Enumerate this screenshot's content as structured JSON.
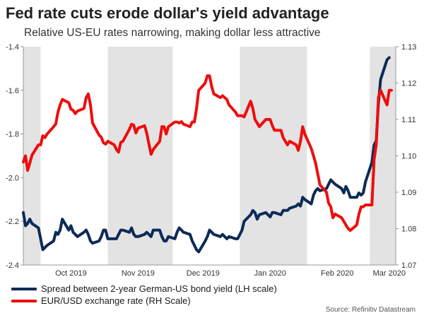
{
  "title": "Fed rate cuts erode dollar's yield advantage",
  "subtitle": "Relative US-EU rates narrowing, making dollar less attractive",
  "source": "Source: Refinitiv Datastream",
  "colors": {
    "spread": "#0d2a57",
    "eurusd": "#ee0d0d",
    "shade": "#e3e3e3",
    "axis": "#999999"
  },
  "chart_data": {
    "type": "line",
    "x_unit": "date",
    "x_range": [
      "2019-09-23",
      "2020-03-13"
    ],
    "x_ticks": [
      {
        "label": "Oct 2019",
        "date": "2019-10-15"
      },
      {
        "label": "Nov 2019",
        "date": "2019-11-15"
      },
      {
        "label": "Dec 2019",
        "date": "2019-12-15"
      },
      {
        "label": "Jan 2020",
        "date": "2020-01-15"
      },
      {
        "label": "Feb 2020",
        "date": "2020-02-15"
      },
      {
        "label": "Mar 2020",
        "date": "2020-03-10"
      }
    ],
    "shaded_periods": [
      [
        "2019-09-23",
        "2019-10-01"
      ],
      [
        "2019-11-01",
        "2019-12-01"
      ],
      [
        "2020-01-01",
        "2020-02-01"
      ],
      [
        "2020-03-01",
        "2020-03-13"
      ]
    ],
    "left_axis": {
      "ylim": [
        -2.4,
        -1.4
      ],
      "ticks": [
        "-1.4",
        "-1.6",
        "-1.8",
        "-2.0",
        "-2.2",
        "-2.4"
      ]
    },
    "right_axis": {
      "ylim": [
        1.07,
        1.13
      ],
      "ticks": [
        "1.13",
        "1.12",
        "1.11",
        "1.10",
        "1.09",
        "1.08",
        "1.07"
      ]
    },
    "series": [
      {
        "name": "Spread between 2-year German-US bond yield (LH scale)",
        "axis": "left",
        "points": [
          [
            "2019-09-23",
            -2.16
          ],
          [
            "2019-09-24",
            -2.22
          ],
          [
            "2019-09-25",
            -2.21
          ],
          [
            "2019-09-26",
            -2.19
          ],
          [
            "2019-09-27",
            -2.21
          ],
          [
            "2019-09-30",
            -2.23
          ],
          [
            "2019-10-01",
            -2.28
          ],
          [
            "2019-10-02",
            -2.33
          ],
          [
            "2019-10-03",
            -2.32
          ],
          [
            "2019-10-04",
            -2.31
          ],
          [
            "2019-10-07",
            -2.29
          ],
          [
            "2019-10-08",
            -2.25
          ],
          [
            "2019-10-09",
            -2.26
          ],
          [
            "2019-10-10",
            -2.24
          ],
          [
            "2019-10-11",
            -2.19
          ],
          [
            "2019-10-14",
            -2.24
          ],
          [
            "2019-10-15",
            -2.22
          ],
          [
            "2019-10-16",
            -2.25
          ],
          [
            "2019-10-17",
            -2.26
          ],
          [
            "2019-10-18",
            -2.27
          ],
          [
            "2019-10-21",
            -2.25
          ],
          [
            "2019-10-22",
            -2.24
          ],
          [
            "2019-10-23",
            -2.26
          ],
          [
            "2019-10-24",
            -2.29
          ],
          [
            "2019-10-25",
            -2.3
          ],
          [
            "2019-10-28",
            -2.29
          ],
          [
            "2019-10-29",
            -2.27
          ],
          [
            "2019-10-30",
            -2.24
          ],
          [
            "2019-10-31",
            -2.24
          ],
          [
            "2019-11-01",
            -2.28
          ],
          [
            "2019-11-04",
            -2.28
          ],
          [
            "2019-11-05",
            -2.28
          ],
          [
            "2019-11-06",
            -2.26
          ],
          [
            "2019-11-07",
            -2.24
          ],
          [
            "2019-11-08",
            -2.24
          ],
          [
            "2019-11-11",
            -2.25
          ],
          [
            "2019-11-12",
            -2.23
          ],
          [
            "2019-11-13",
            -2.26
          ],
          [
            "2019-11-14",
            -2.27
          ],
          [
            "2019-11-15",
            -2.27
          ],
          [
            "2019-11-18",
            -2.26
          ],
          [
            "2019-11-19",
            -2.25
          ],
          [
            "2019-11-20",
            -2.26
          ],
          [
            "2019-11-21",
            -2.27
          ],
          [
            "2019-11-22",
            -2.24
          ],
          [
            "2019-11-25",
            -2.24
          ],
          [
            "2019-11-26",
            -2.27
          ],
          [
            "2019-11-27",
            -2.29
          ],
          [
            "2019-11-28",
            -2.29
          ],
          [
            "2019-11-29",
            -2.27
          ],
          [
            "2019-12-02",
            -2.28
          ],
          [
            "2019-12-03",
            -2.25
          ],
          [
            "2019-12-04",
            -2.23
          ],
          [
            "2019-12-05",
            -2.24
          ],
          [
            "2019-12-06",
            -2.25
          ],
          [
            "2019-12-09",
            -2.26
          ],
          [
            "2019-12-10",
            -2.29
          ],
          [
            "2019-12-11",
            -2.31
          ],
          [
            "2019-12-12",
            -2.33
          ],
          [
            "2019-12-13",
            -2.34
          ],
          [
            "2019-12-16",
            -2.29
          ],
          [
            "2019-12-17",
            -2.27
          ],
          [
            "2019-12-18",
            -2.24
          ],
          [
            "2019-12-19",
            -2.25
          ],
          [
            "2019-12-20",
            -2.26
          ],
          [
            "2019-12-23",
            -2.27
          ],
          [
            "2019-12-24",
            -2.26
          ],
          [
            "2019-12-26",
            -2.28
          ],
          [
            "2019-12-27",
            -2.27
          ],
          [
            "2019-12-30",
            -2.28
          ],
          [
            "2019-12-31",
            -2.28
          ],
          [
            "2020-01-02",
            -2.24
          ],
          [
            "2020-01-03",
            -2.2
          ],
          [
            "2020-01-06",
            -2.17
          ],
          [
            "2020-01-07",
            -2.15
          ],
          [
            "2020-01-08",
            -2.16
          ],
          [
            "2020-01-09",
            -2.19
          ],
          [
            "2020-01-10",
            -2.17
          ],
          [
            "2020-01-13",
            -2.16
          ],
          [
            "2020-01-14",
            -2.17
          ],
          [
            "2020-01-15",
            -2.18
          ],
          [
            "2020-01-16",
            -2.16
          ],
          [
            "2020-01-17",
            -2.16
          ],
          [
            "2020-01-20",
            -2.17
          ],
          [
            "2020-01-21",
            -2.15
          ],
          [
            "2020-01-22",
            -2.15
          ],
          [
            "2020-01-23",
            -2.15
          ],
          [
            "2020-01-24",
            -2.14
          ],
          [
            "2020-01-27",
            -2.13
          ],
          [
            "2020-01-28",
            -2.12
          ],
          [
            "2020-01-29",
            -2.13
          ],
          [
            "2020-01-30",
            -2.09
          ],
          [
            "2020-01-31",
            -2.1
          ],
          [
            "2020-02-03",
            -2.12
          ],
          [
            "2020-02-04",
            -2.08
          ],
          [
            "2020-02-05",
            -2.06
          ],
          [
            "2020-02-06",
            -2.05
          ],
          [
            "2020-02-07",
            -2.06
          ],
          [
            "2020-02-10",
            -2.05
          ],
          [
            "2020-02-11",
            -2.03
          ],
          [
            "2020-02-12",
            -2.01
          ],
          [
            "2020-02-13",
            -2.02
          ],
          [
            "2020-02-14",
            -2.03
          ],
          [
            "2020-02-17",
            -2.05
          ],
          [
            "2020-02-18",
            -2.07
          ],
          [
            "2020-02-19",
            -2.04
          ],
          [
            "2020-02-20",
            -2.06
          ],
          [
            "2020-02-21",
            -2.09
          ],
          [
            "2020-02-24",
            -2.09
          ],
          [
            "2020-02-25",
            -2.07
          ],
          [
            "2020-02-26",
            -2.08
          ],
          [
            "2020-02-27",
            -2.07
          ],
          [
            "2020-02-28",
            -2.02
          ],
          [
            "2020-03-02",
            -1.93
          ],
          [
            "2020-03-03",
            -1.85
          ],
          [
            "2020-03-04",
            -1.83
          ],
          [
            "2020-03-05",
            -1.66
          ],
          [
            "2020-03-06",
            -1.55
          ],
          [
            "2020-03-09",
            -1.46
          ],
          [
            "2020-03-10",
            -1.45
          ]
        ]
      },
      {
        "name": "EUR/USD exchange rate (RH Scale)",
        "axis": "right",
        "points": [
          [
            "2019-09-23",
            1.0983
          ],
          [
            "2019-09-24",
            1.1
          ],
          [
            "2019-09-25",
            1.096
          ],
          [
            "2019-09-26",
            1.098
          ],
          [
            "2019-09-27",
            1.1002
          ],
          [
            "2019-09-30",
            1.103
          ],
          [
            "2019-10-01",
            1.103
          ],
          [
            "2019-10-02",
            1.1055
          ],
          [
            "2019-10-03",
            1.105
          ],
          [
            "2019-10-04",
            1.106
          ],
          [
            "2019-10-07",
            1.108
          ],
          [
            "2019-10-08",
            1.1088
          ],
          [
            "2019-10-09",
            1.112
          ],
          [
            "2019-10-10",
            1.114
          ],
          [
            "2019-10-11",
            1.1155
          ],
          [
            "2019-10-14",
            1.1146
          ],
          [
            "2019-10-15",
            1.1128
          ],
          [
            "2019-10-16",
            1.1125
          ],
          [
            "2019-10-17",
            1.1116
          ],
          [
            "2019-10-18",
            1.1123
          ],
          [
            "2019-10-21",
            1.113
          ],
          [
            "2019-10-22",
            1.116
          ],
          [
            "2019-10-23",
            1.117
          ],
          [
            "2019-10-24",
            1.114
          ],
          [
            "2019-10-25",
            1.109
          ],
          [
            "2019-10-28",
            1.1057
          ],
          [
            "2019-10-29",
            1.1051
          ],
          [
            "2019-10-30",
            1.1036
          ],
          [
            "2019-10-31",
            1.1032
          ],
          [
            "2019-11-01",
            1.104
          ],
          [
            "2019-11-04",
            1.103
          ],
          [
            "2019-11-05",
            1.1017
          ],
          [
            "2019-11-06",
            1.101
          ],
          [
            "2019-11-07",
            1.1037
          ],
          [
            "2019-11-08",
            1.104
          ],
          [
            "2019-11-11",
            1.1073
          ],
          [
            "2019-11-12",
            1.1087
          ],
          [
            "2019-11-13",
            1.1084
          ],
          [
            "2019-11-14",
            1.1063
          ],
          [
            "2019-11-15",
            1.1076
          ],
          [
            "2019-11-18",
            1.1083
          ],
          [
            "2019-11-19",
            1.1063
          ],
          [
            "2019-11-20",
            1.1033
          ],
          [
            "2019-11-21",
            1.1004
          ],
          [
            "2019-11-22",
            1.1017
          ],
          [
            "2019-11-25",
            1.104
          ],
          [
            "2019-11-26",
            1.108
          ],
          [
            "2019-11-27",
            1.108
          ],
          [
            "2019-11-28",
            1.106
          ],
          [
            "2019-11-29",
            1.108
          ],
          [
            "2019-12-02",
            1.1093
          ],
          [
            "2019-12-03",
            1.1093
          ],
          [
            "2019-12-04",
            1.109
          ],
          [
            "2019-12-05",
            1.1094
          ],
          [
            "2019-12-06",
            1.1087
          ],
          [
            "2019-12-09",
            1.108
          ],
          [
            "2019-12-10",
            1.1093
          ],
          [
            "2019-12-11",
            1.1093
          ],
          [
            "2019-12-12",
            1.113
          ],
          [
            "2019-12-13",
            1.118
          ],
          [
            "2019-12-16",
            1.12
          ],
          [
            "2019-12-17",
            1.122
          ],
          [
            "2019-12-18",
            1.122
          ],
          [
            "2019-12-19",
            1.119
          ],
          [
            "2019-12-20",
            1.117
          ],
          [
            "2019-12-23",
            1.116
          ],
          [
            "2019-12-24",
            1.1165
          ],
          [
            "2019-12-26",
            1.1155
          ],
          [
            "2019-12-27",
            1.114
          ],
          [
            "2019-12-30",
            1.112
          ],
          [
            "2019-12-31",
            1.111
          ],
          [
            "2020-01-02",
            1.111
          ],
          [
            "2020-01-03",
            1.1107
          ],
          [
            "2020-01-06",
            1.115
          ],
          [
            "2020-01-07",
            1.113
          ],
          [
            "2020-01-08",
            1.11
          ],
          [
            "2020-01-09",
            1.109
          ],
          [
            "2020-01-10",
            1.108
          ],
          [
            "2020-01-13",
            1.11
          ],
          [
            "2020-01-14",
            1.11
          ],
          [
            "2020-01-15",
            1.11
          ],
          [
            "2020-01-16",
            1.1083
          ],
          [
            "2020-01-17",
            1.107
          ],
          [
            "2020-01-20",
            1.107
          ],
          [
            "2020-01-21",
            1.105
          ],
          [
            "2020-01-22",
            1.104
          ],
          [
            "2020-01-23",
            1.103
          ],
          [
            "2020-01-24",
            1.104
          ],
          [
            "2020-01-27",
            1.103
          ],
          [
            "2020-01-28",
            1.1015
          ],
          [
            "2020-01-29",
            1.104
          ],
          [
            "2020-01-30",
            1.108
          ],
          [
            "2020-01-31",
            1.106
          ],
          [
            "2020-02-03",
            1.102
          ],
          [
            "2020-02-04",
            1.1
          ],
          [
            "2020-02-05",
            1.098
          ],
          [
            "2020-02-06",
            1.095
          ],
          [
            "2020-02-07",
            1.092
          ],
          [
            "2020-02-10",
            1.09
          ],
          [
            "2020-02-11",
            1.087
          ],
          [
            "2020-02-12",
            1.086
          ],
          [
            "2020-02-13",
            1.083
          ],
          [
            "2020-02-14",
            1.084
          ],
          [
            "2020-02-17",
            1.083
          ],
          [
            "2020-02-18",
            1.082
          ],
          [
            "2020-02-19",
            1.081
          ],
          [
            "2020-02-20",
            1.08
          ],
          [
            "2020-02-21",
            1.0795
          ],
          [
            "2020-02-24",
            1.081
          ],
          [
            "2020-02-25",
            1.084
          ],
          [
            "2020-02-26",
            1.086
          ],
          [
            "2020-02-27",
            1.086
          ],
          [
            "2020-02-28",
            1.0865
          ],
          [
            "2020-03-02",
            1.0865
          ],
          [
            "2020-03-03",
            1.099
          ],
          [
            "2020-03-04",
            1.103
          ],
          [
            "2020-03-05",
            1.116
          ],
          [
            "2020-03-06",
            1.118
          ],
          [
            "2020-03-09",
            1.114
          ],
          [
            "2020-03-10",
            1.118
          ],
          [
            "2020-03-11",
            1.118
          ]
        ]
      }
    ]
  }
}
